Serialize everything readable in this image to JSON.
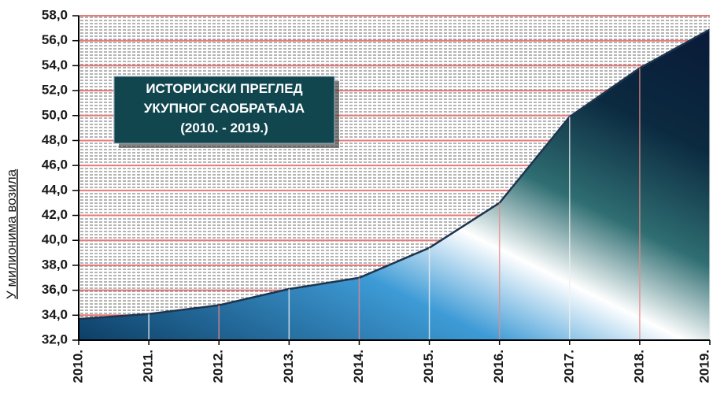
{
  "chart_data": {
    "type": "area",
    "title_lines": [
      "ИСТОРИЈСКИ ПРЕГЛЕД",
      "УКУПНОГ САОБРАЋАЈА",
      "(2010. - 2019.)"
    ],
    "y_label": "У милионима возила",
    "categories": [
      "2010.",
      "2011.",
      "2012.",
      "2013.",
      "2014.",
      "2015.",
      "2016.",
      "2017.",
      "2018.",
      "2019."
    ],
    "values": [
      33.7,
      34.1,
      34.8,
      36.1,
      37.0,
      39.4,
      43.0,
      49.9,
      53.8,
      56.9
    ],
    "ylim": [
      32,
      58
    ],
    "yticks": [
      {
        "value": 32,
        "label": "32,0"
      },
      {
        "value": 34,
        "label": "34,0"
      },
      {
        "value": 36,
        "label": "36,0"
      },
      {
        "value": 38,
        "label": "38,0"
      },
      {
        "value": 40,
        "label": "40,0"
      },
      {
        "value": 42,
        "label": "42,0"
      },
      {
        "value": 44,
        "label": "44,0"
      },
      {
        "value": 46,
        "label": "46,0"
      },
      {
        "value": 48,
        "label": "48,0"
      },
      {
        "value": 50,
        "label": "50,0"
      },
      {
        "value": 52,
        "label": "52,0"
      },
      {
        "value": 54,
        "label": "54,0"
      },
      {
        "value": 56,
        "label": "56,0"
      },
      {
        "value": 58,
        "label": "58,0"
      }
    ],
    "grid": true,
    "grid_color": "#e87a7a"
  }
}
